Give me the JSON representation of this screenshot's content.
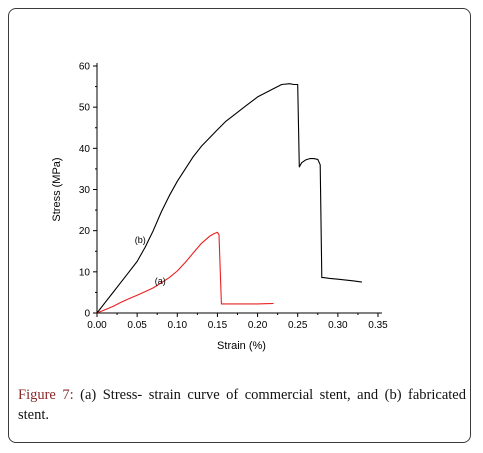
{
  "chart_data": {
    "type": "line",
    "xlabel": "Strain (%)",
    "ylabel": "Stress (MPa)",
    "xlim": [
      0,
      0.35
    ],
    "ylim": [
      0,
      60
    ],
    "xticks": [
      "0.00",
      "0.05",
      "0.10",
      "0.15",
      "0.20",
      "0.25",
      "0.30",
      "0.35"
    ],
    "yticks": [
      "0",
      "10",
      "20",
      "30",
      "40",
      "50",
      "60"
    ],
    "grid": false,
    "legend": "none",
    "series": [
      {
        "name": "(a)",
        "color": "#e8201f",
        "x": [
          0,
          0.01,
          0.02,
          0.03,
          0.04,
          0.05,
          0.06,
          0.07,
          0.08,
          0.09,
          0.1,
          0.11,
          0.12,
          0.13,
          0.14,
          0.145,
          0.15,
          0.152,
          0.155,
          0.16,
          0.17,
          0.18,
          0.19,
          0.2,
          0.21,
          0.22
        ],
        "y": [
          0,
          0.8,
          1.6,
          2.6,
          3.5,
          4.3,
          5.2,
          6.1,
          7.3,
          8.6,
          10.2,
          12.3,
          14.6,
          16.9,
          18.6,
          19.2,
          19.6,
          19.0,
          2.2,
          2.2,
          2.2,
          2.2,
          2.2,
          2.2,
          2.25,
          2.3
        ]
      },
      {
        "name": "(b)",
        "color": "#000000",
        "x": [
          0,
          0.01,
          0.02,
          0.03,
          0.04,
          0.05,
          0.06,
          0.07,
          0.08,
          0.09,
          0.1,
          0.11,
          0.12,
          0.13,
          0.14,
          0.15,
          0.16,
          0.17,
          0.18,
          0.19,
          0.2,
          0.21,
          0.22,
          0.23,
          0.24,
          0.245,
          0.25,
          0.252,
          0.255,
          0.26,
          0.265,
          0.27,
          0.275,
          0.278,
          0.28,
          0.282,
          0.29,
          0.3,
          0.31,
          0.32,
          0.33
        ],
        "y": [
          0,
          2.5,
          5.0,
          7.5,
          10.0,
          12.5,
          16.0,
          20.0,
          24.5,
          28.5,
          32.0,
          35.0,
          38.0,
          40.5,
          42.5,
          44.5,
          46.5,
          48.0,
          49.5,
          51.0,
          52.5,
          53.5,
          54.5,
          55.5,
          55.7,
          55.5,
          55.5,
          35.5,
          36.5,
          37.2,
          37.5,
          37.5,
          37.3,
          36.0,
          8.6,
          8.6,
          8.4,
          8.2,
          8.0,
          7.8,
          7.5
        ]
      }
    ],
    "annotations": [
      {
        "text": "(b)",
        "x": 0.047,
        "y": 17
      },
      {
        "text": "(a)",
        "x": 0.072,
        "y": 7
      }
    ]
  },
  "caption": {
    "label": "Figure 7:",
    "text": " (a) Stress- strain curve of commercial stent, and (b) fabricated stent."
  }
}
